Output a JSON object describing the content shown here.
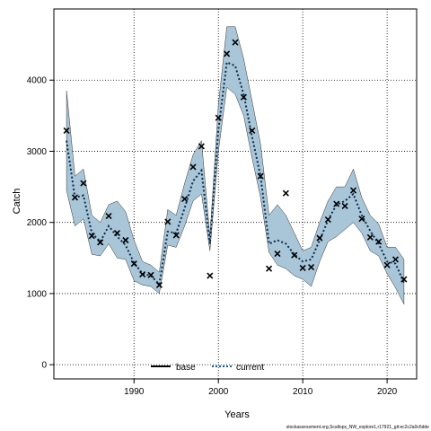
{
  "chart_data": {
    "type": "line",
    "xlabel": "Years",
    "ylabel": "Catch",
    "xlim": [
      1980.5,
      2023.5
    ],
    "ylim": [
      -200,
      5000
    ],
    "xticks": [
      1990,
      2000,
      2010,
      2020
    ],
    "yticks": [
      0,
      1000,
      2000,
      3000,
      4000
    ],
    "xtick_labels": [
      "1990",
      "2000",
      "2010",
      "2020"
    ],
    "ytick_labels": [
      "0",
      "1000",
      "2000",
      "3000",
      "4000"
    ],
    "grid": true,
    "legend_position": "bottom-center",
    "series": [
      {
        "name": "base",
        "style": "solid",
        "color": "#000000",
        "x": [],
        "y": []
      },
      {
        "name": "current",
        "style": "dotted",
        "color": "#1a5f9e",
        "x": [
          1982,
          1983,
          1984,
          1985,
          1986,
          1987,
          1988,
          1989,
          1990,
          1991,
          1992,
          1993,
          1994,
          1995,
          1996,
          1997,
          1998,
          1999,
          2000,
          2001,
          2002,
          2003,
          2004,
          2005,
          2006,
          2007,
          2008,
          2009,
          2010,
          2011,
          2012,
          2013,
          2014,
          2015,
          2016,
          2017,
          2018,
          2019,
          2020,
          2021,
          2022
        ],
        "y": [
          3150,
          2350,
          2380,
          1850,
          1730,
          1950,
          1800,
          1680,
          1430,
          1280,
          1250,
          1130,
          1870,
          1850,
          2200,
          2580,
          2730,
          1700,
          3300,
          4250,
          4200,
          3800,
          3200,
          2650,
          1700,
          1750,
          1700,
          1550,
          1450,
          1480,
          1750,
          2030,
          2250,
          2300,
          2400,
          2100,
          1880,
          1700,
          1450,
          1420,
          1150
        ]
      }
    ],
    "ci_band": {
      "color": "#a9c6d8",
      "lower": [
        2450,
        1950,
        2050,
        1550,
        1530,
        1700,
        1500,
        1480,
        1180,
        1120,
        1100,
        1000,
        1680,
        1650,
        1950,
        2300,
        2400,
        1600,
        3000,
        3900,
        3800,
        3500,
        2900,
        2350,
        1580,
        1400,
        1350,
        1250,
        1200,
        1100,
        1450,
        1730,
        1800,
        1900,
        2000,
        1850,
        1600,
        1530,
        1280,
        1080,
        850
      ],
      "upper": [
        3850,
        2650,
        2750,
        2100,
        2000,
        2250,
        2300,
        2150,
        1750,
        1450,
        1400,
        1300,
        2180,
        2100,
        2550,
        2950,
        3150,
        1800,
        3650,
        4750,
        4750,
        4300,
        3700,
        3100,
        2100,
        2250,
        2100,
        1850,
        1600,
        1650,
        2000,
        2300,
        2500,
        2500,
        2750,
        2350,
        2100,
        1980,
        1650,
        1650,
        1480
      ]
    },
    "observations": {
      "marker": "x",
      "x": [
        1982,
        1983,
        1984,
        1985,
        1986,
        1987,
        1988,
        1989,
        1990,
        1991,
        1992,
        1993,
        1994,
        1995,
        1996,
        1997,
        1998,
        1999,
        2000,
        2001,
        2002,
        2003,
        2004,
        2005,
        2006,
        2007,
        2008,
        2009,
        2010,
        2011,
        2012,
        2013,
        2014,
        2015,
        2016,
        2017,
        2018,
        2019,
        2020,
        2021,
        2022
      ],
      "y": [
        3290,
        2350,
        2550,
        1810,
        1720,
        2090,
        1850,
        1750,
        1420,
        1270,
        1260,
        1120,
        2010,
        1820,
        2330,
        2780,
        3070,
        1250,
        3470,
        4370,
        4530,
        3760,
        3290,
        2650,
        1350,
        1560,
        2410,
        1540,
        1360,
        1370,
        1780,
        2040,
        2260,
        2230,
        2450,
        2050,
        1790,
        1730,
        1400,
        1480,
        1200
      ]
    }
  },
  "footer": {
    "source_text": "stockassessment.org,Scallops_NW_explore1,r17921_git:ec2c2a0c6dde"
  },
  "colors": {
    "ci_band": "#a9c6d8",
    "current_line": "#1a5f9e",
    "base_line": "#000000",
    "grid": "#000000"
  }
}
